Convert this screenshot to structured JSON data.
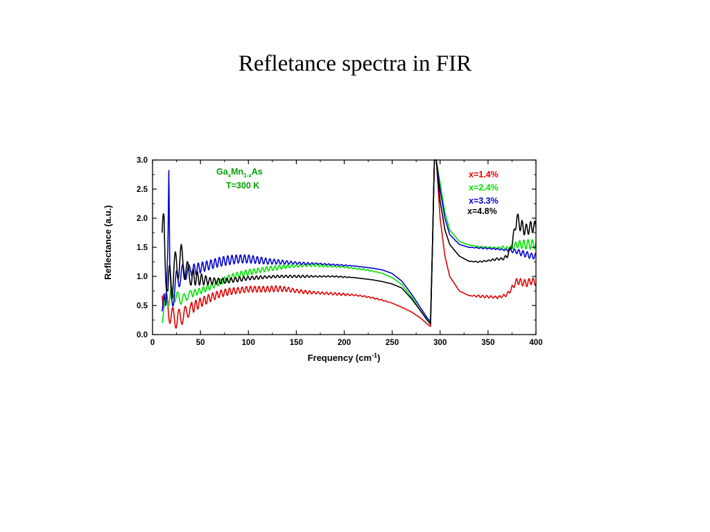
{
  "slide": {
    "title": "Refletance spectra in FIR"
  },
  "chart_data": {
    "type": "line",
    "xlabel_main": "Frequency (cm",
    "xlabel_sup": "-1",
    "xlabel_end": ")",
    "ylabel": "Reflectance (a.u.)",
    "xlim": [
      0,
      400
    ],
    "ylim": [
      0.0,
      3.0
    ],
    "x_ticks": [
      "0",
      "50",
      "100",
      "150",
      "200",
      "250",
      "300",
      "350",
      "400"
    ],
    "y_ticks": [
      "0.0",
      "0.5",
      "1.0",
      "1.5",
      "2.0",
      "2.5",
      "3.0"
    ],
    "grid": false,
    "legend_position": "top-right",
    "annotation": {
      "line1": [
        "Ga",
        "x",
        "Mn",
        "1-x",
        "As"
      ],
      "line2": "T=300 K",
      "color": "#00a000"
    },
    "series": [
      {
        "name": "x=1.4%",
        "color": "#e00000",
        "x": [
          10,
          15,
          20,
          25,
          30,
          40,
          50,
          60,
          70,
          80,
          90,
          100,
          110,
          120,
          130,
          140,
          150,
          160,
          170,
          180,
          190,
          200,
          210,
          220,
          230,
          240,
          250,
          260,
          270,
          280,
          286,
          290,
          292,
          294,
          296,
          300,
          305,
          310,
          320,
          330,
          340,
          350,
          360,
          365,
          370,
          375,
          380,
          385,
          390,
          395,
          400
        ],
        "y": [
          0.72,
          0.5,
          0.3,
          0.27,
          0.3,
          0.45,
          0.55,
          0.63,
          0.7,
          0.74,
          0.76,
          0.78,
          0.78,
          0.78,
          0.79,
          0.78,
          0.75,
          0.73,
          0.72,
          0.71,
          0.7,
          0.69,
          0.68,
          0.66,
          0.63,
          0.59,
          0.54,
          0.47,
          0.39,
          0.28,
          0.19,
          0.14,
          1.5,
          3.0,
          3.0,
          2.0,
          1.35,
          1.0,
          0.75,
          0.67,
          0.66,
          0.65,
          0.64,
          0.66,
          0.69,
          0.8,
          0.92,
          0.9,
          0.88,
          0.92,
          0.9
        ],
        "oscillation_amplitude": [
          0.2,
          0.2,
          0.18,
          0.16,
          0.14,
          0.1,
          0.08,
          0.07,
          0.06,
          0.06,
          0.05,
          0.05,
          0.05,
          0.05,
          0.05,
          0.04,
          0.03,
          0.03,
          0.02,
          0.02,
          0.02,
          0.02,
          0.01,
          0.01,
          0.01,
          0.01,
          0.0,
          0.0,
          0.0,
          0.0,
          0.0,
          0.0,
          0.0,
          0.0,
          0.0,
          0.0,
          0.0,
          0.0,
          0.0,
          0.0,
          0.02,
          0.02,
          0.02,
          0.02,
          0.03,
          0.04,
          0.05,
          0.06,
          0.06,
          0.06,
          0.06
        ]
      },
      {
        "name": "x=2.4%",
        "color": "#00e000",
        "x": [
          10,
          15,
          20,
          25,
          30,
          40,
          50,
          60,
          70,
          80,
          90,
          100,
          110,
          120,
          130,
          140,
          150,
          160,
          170,
          180,
          190,
          200,
          210,
          220,
          230,
          240,
          250,
          260,
          270,
          280,
          286,
          290,
          292,
          294,
          296,
          300,
          305,
          310,
          320,
          330,
          340,
          350,
          360,
          365,
          370,
          375,
          380,
          385,
          390,
          395,
          400
        ],
        "y": [
          0.35,
          0.6,
          0.7,
          0.65,
          0.6,
          0.7,
          0.75,
          0.82,
          0.9,
          0.98,
          1.03,
          1.07,
          1.1,
          1.13,
          1.15,
          1.17,
          1.18,
          1.19,
          1.19,
          1.18,
          1.17,
          1.16,
          1.14,
          1.12,
          1.09,
          1.05,
          0.98,
          0.86,
          0.65,
          0.4,
          0.26,
          0.2,
          1.5,
          3.0,
          3.0,
          2.6,
          2.1,
          1.8,
          1.6,
          1.54,
          1.51,
          1.5,
          1.49,
          1.5,
          1.48,
          1.5,
          1.55,
          1.55,
          1.55,
          1.55,
          1.55
        ],
        "oscillation_amplitude": [
          0.15,
          0.15,
          0.12,
          0.1,
          0.08,
          0.06,
          0.05,
          0.05,
          0.05,
          0.05,
          0.05,
          0.05,
          0.04,
          0.04,
          0.04,
          0.03,
          0.02,
          0.02,
          0.02,
          0.02,
          0.01,
          0.01,
          0.01,
          0.01,
          0.01,
          0.0,
          0.0,
          0.0,
          0.0,
          0.0,
          0.0,
          0.0,
          0.0,
          0.0,
          0.0,
          0.0,
          0.0,
          0.0,
          0.0,
          0.0,
          0.01,
          0.01,
          0.01,
          0.02,
          0.03,
          0.04,
          0.06,
          0.07,
          0.08,
          0.08,
          0.08
        ]
      },
      {
        "name": "x=3.3%",
        "color": "#0000cc",
        "x": [
          10,
          12,
          14,
          16,
          17,
          18,
          20,
          25,
          30,
          40,
          50,
          60,
          70,
          80,
          90,
          100,
          110,
          120,
          130,
          140,
          150,
          160,
          170,
          180,
          190,
          200,
          210,
          220,
          230,
          240,
          250,
          260,
          270,
          280,
          286,
          290,
          292,
          294,
          296,
          300,
          305,
          310,
          320,
          330,
          340,
          350,
          360,
          365,
          370,
          375,
          380,
          385,
          390,
          395,
          400
        ],
        "y": [
          0.4,
          0.7,
          0.5,
          1.5,
          2.82,
          1.2,
          0.6,
          0.9,
          1.05,
          1.1,
          1.15,
          1.2,
          1.25,
          1.28,
          1.3,
          1.3,
          1.28,
          1.26,
          1.25,
          1.24,
          1.23,
          1.22,
          1.22,
          1.21,
          1.2,
          1.19,
          1.18,
          1.16,
          1.14,
          1.11,
          1.05,
          0.92,
          0.7,
          0.45,
          0.3,
          0.22,
          1.5,
          3.0,
          3.0,
          2.5,
          2.0,
          1.72,
          1.55,
          1.5,
          1.49,
          1.48,
          1.47,
          1.46,
          1.45,
          1.44,
          1.43,
          1.4,
          1.38,
          1.35,
          1.35
        ],
        "oscillation_amplitude": [
          0.0,
          0.0,
          0.0,
          0.0,
          0.0,
          0.0,
          0.2,
          0.2,
          0.15,
          0.1,
          0.09,
          0.08,
          0.08,
          0.08,
          0.07,
          0.07,
          0.06,
          0.05,
          0.04,
          0.03,
          0.02,
          0.02,
          0.01,
          0.01,
          0.01,
          0.01,
          0.0,
          0.0,
          0.0,
          0.0,
          0.0,
          0.0,
          0.0,
          0.0,
          0.0,
          0.0,
          0.0,
          0.0,
          0.0,
          0.0,
          0.0,
          0.0,
          0.0,
          0.0,
          0.01,
          0.01,
          0.01,
          0.01,
          0.02,
          0.03,
          0.04,
          0.05,
          0.05,
          0.05,
          0.05
        ]
      },
      {
        "name": "x=4.8%",
        "color": "#000000",
        "x": [
          10,
          12,
          14,
          16,
          18,
          20,
          25,
          30,
          35,
          40,
          50,
          60,
          70,
          80,
          90,
          100,
          110,
          120,
          130,
          140,
          150,
          160,
          170,
          180,
          190,
          200,
          210,
          220,
          230,
          240,
          250,
          260,
          270,
          280,
          286,
          290,
          292,
          294,
          296,
          300,
          305,
          310,
          320,
          330,
          340,
          350,
          360,
          365,
          370,
          375,
          380,
          385,
          390,
          395,
          400
        ],
        "y": [
          1.5,
          1.95,
          1.2,
          0.6,
          1.0,
          0.9,
          1.2,
          1.3,
          1.1,
          1.0,
          0.95,
          0.92,
          0.92,
          0.93,
          0.95,
          0.97,
          0.98,
          0.99,
          1.0,
          1.0,
          1.0,
          1.0,
          1.0,
          1.0,
          1.0,
          0.99,
          0.98,
          0.96,
          0.94,
          0.91,
          0.87,
          0.8,
          0.62,
          0.4,
          0.26,
          0.18,
          1.5,
          3.0,
          3.0,
          2.3,
          1.8,
          1.55,
          1.35,
          1.26,
          1.25,
          1.27,
          1.3,
          1.3,
          1.35,
          1.55,
          2.0,
          1.85,
          1.8,
          1.85,
          1.85
        ],
        "oscillation_amplitude": [
          0.3,
          0.4,
          0.35,
          0.3,
          0.3,
          0.3,
          0.3,
          0.25,
          0.2,
          0.15,
          0.1,
          0.06,
          0.05,
          0.04,
          0.04,
          0.03,
          0.03,
          0.02,
          0.02,
          0.02,
          0.02,
          0.02,
          0.01,
          0.01,
          0.01,
          0.01,
          0.0,
          0.0,
          0.0,
          0.0,
          0.0,
          0.0,
          0.0,
          0.0,
          0.0,
          0.0,
          0.0,
          0.0,
          0.0,
          0.0,
          0.0,
          0.0,
          0.0,
          0.0,
          0.01,
          0.01,
          0.02,
          0.02,
          0.03,
          0.05,
          0.1,
          0.12,
          0.1,
          0.1,
          0.1
        ]
      }
    ]
  }
}
